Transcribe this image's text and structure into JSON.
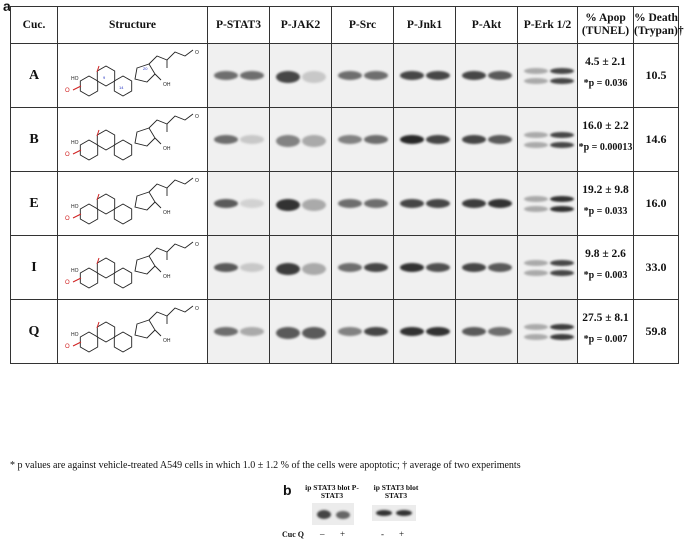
{
  "panel_a_label": "a",
  "panel_b_label": "b",
  "headers": {
    "cuc": "Cuc.",
    "structure": "Structure",
    "pstat3": "P-STAT3",
    "pjak2": "P-JAK2",
    "psrc": "P-Src",
    "pjnk1": "P-Jnk1",
    "pakt": "P-Akt",
    "perk": "P-Erk 1/2",
    "apop": "% Apop (TUNEL)",
    "death": "% Death (Trypan)†"
  },
  "rows": [
    {
      "cuc": "A",
      "apop": "4.5 ± 2.1",
      "p": "*p = 0.036",
      "death": "10.5"
    },
    {
      "cuc": "B",
      "apop": "16.0 ± 2.2",
      "p": "*p = 0.00013",
      "death": "14.6"
    },
    {
      "cuc": "E",
      "apop": "19.2 ± 9.8",
      "p": "*p = 0.033",
      "death": "16.0"
    },
    {
      "cuc": "I",
      "apop": "9.8 ± 2.6",
      "p": "*p = 0.003",
      "death": "33.0"
    },
    {
      "cuc": "Q",
      "apop": "27.5 ± 8.1",
      "p": "*p = 0.007",
      "death": "59.8"
    }
  ],
  "footnote": "* p values are against vehicle-treated A549 cells in which 1.0 ± 1.2 % of the cells were apoptotic; † average of two experiments",
  "panel_b": {
    "blot1_label": "ip STAT3 blot P-STAT3",
    "blot2_label": "ip STAT3 blot STAT3",
    "cuc_label": "Cuc Q",
    "signs": [
      "–",
      "+",
      "-",
      "+"
    ]
  },
  "colors": {
    "ring_highlight": "#d02020",
    "atom_label": "#2030c0"
  }
}
